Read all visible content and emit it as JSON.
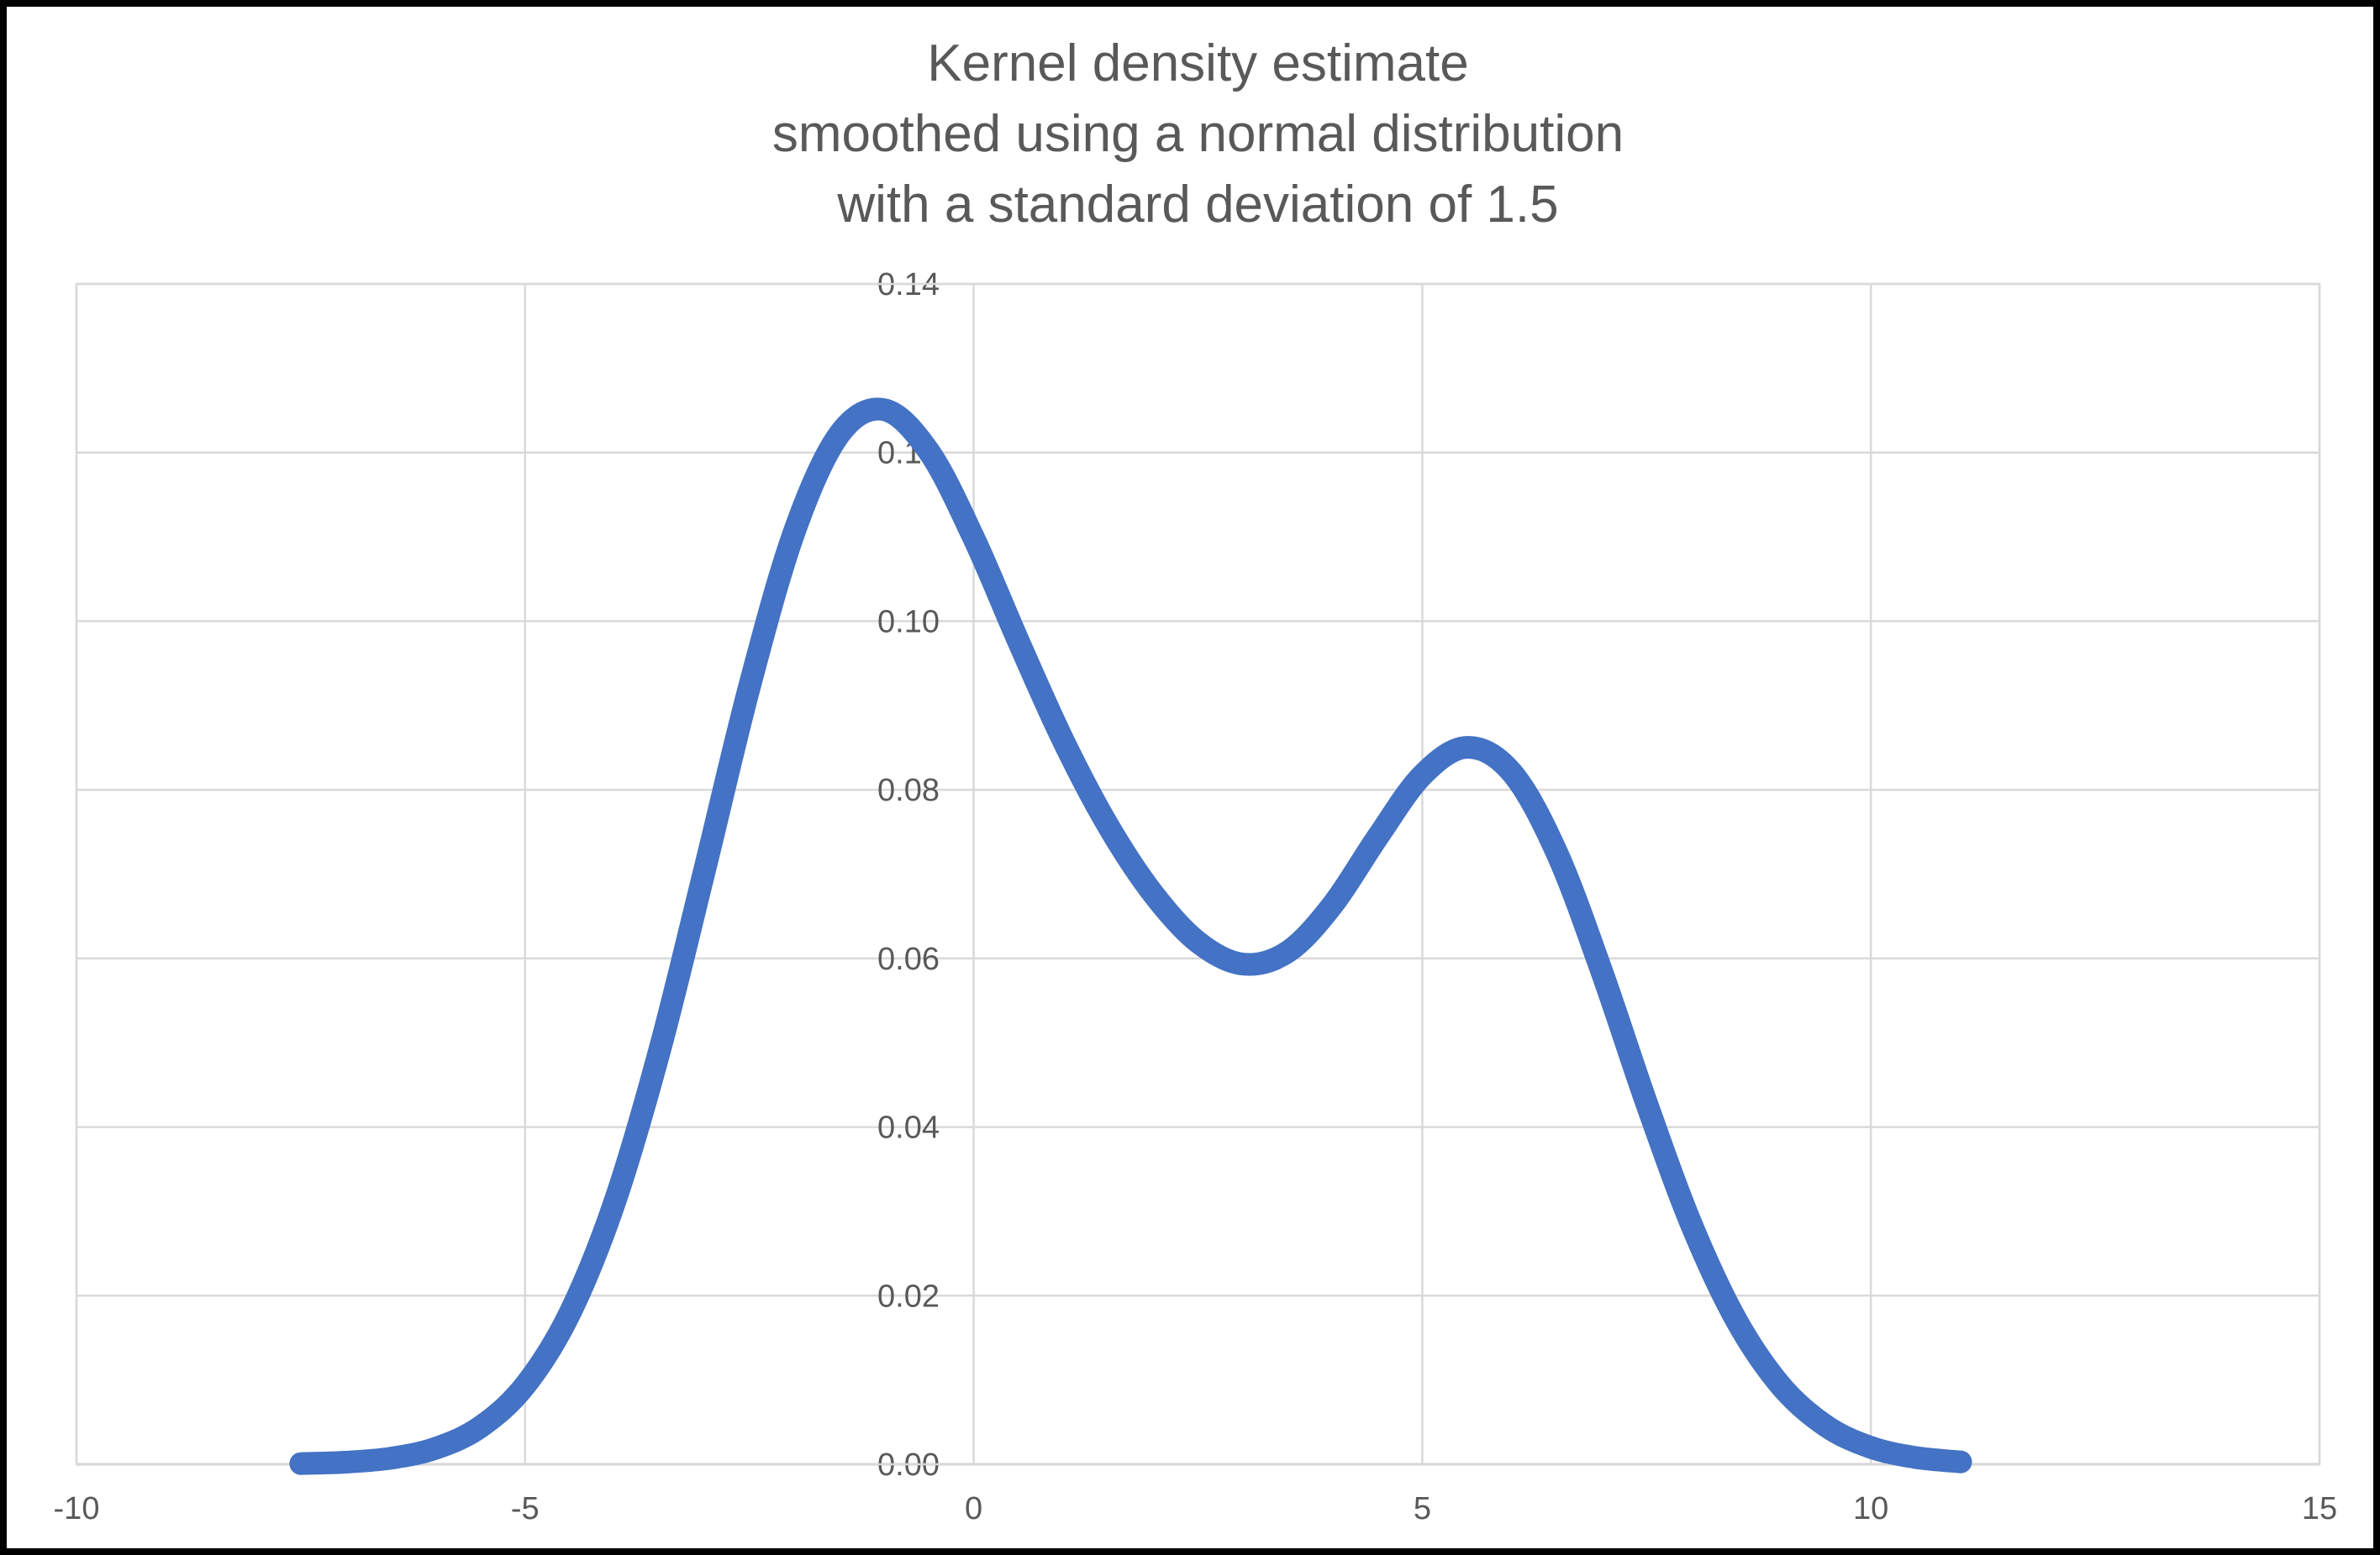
{
  "title": {
    "lines": [
      "Kernel density estimate",
      "smoothed using a normal distribution",
      "with a standard deviation of 1.5"
    ]
  },
  "colors": {
    "curve": "#4472C4",
    "gridline": "#D9D9D9",
    "axis_line": "#BFBFBF",
    "text": "#595959",
    "frame": "#000000",
    "background": "#FFFFFF"
  },
  "chart_data": {
    "type": "line",
    "title": "Kernel density estimate smoothed using a normal distribution with a standard deviation of 1.5",
    "xlabel": "",
    "ylabel": "",
    "xlim": [
      -10,
      15
    ],
    "ylim": [
      0,
      0.14
    ],
    "grid": true,
    "legend": false,
    "markers": false,
    "x_ticks": [
      -10,
      -5,
      0,
      5,
      10,
      15
    ],
    "x_tick_labels": [
      "-10",
      "-5",
      "0",
      "5",
      "10",
      "15"
    ],
    "y_ticks": [
      0,
      0.02,
      0.04,
      0.06,
      0.08,
      0.1,
      0.12,
      0.14
    ],
    "y_tick_labels": [
      "0.00",
      "0.02",
      "0.04",
      "0.06",
      "0.08",
      "0.10",
      "0.12",
      "0.14"
    ],
    "smoothing_stated_in_title": {
      "kernel": "normal",
      "standard_deviation": 1.5
    },
    "series": [
      {
        "name": "Kernel density estimate",
        "x": [
          -7.5,
          -7.0,
          -6.5,
          -6.0,
          -5.5,
          -5.0,
          -4.5,
          -4.0,
          -3.5,
          -3.0,
          -2.5,
          -2.0,
          -1.5,
          -1.0,
          -0.5,
          0.0,
          0.5,
          1.0,
          1.5,
          2.0,
          2.5,
          3.0,
          3.5,
          4.0,
          4.5,
          5.0,
          5.5,
          6.0,
          6.5,
          7.0,
          7.5,
          8.0,
          8.5,
          9.0,
          9.5,
          10.0,
          10.5,
          11.0
        ],
        "y": [
          8e-05,
          0.00025,
          0.00072,
          0.00188,
          0.00441,
          0.00935,
          0.01795,
          0.03115,
          0.0491,
          0.07043,
          0.0922,
          0.11059,
          0.12213,
          0.12509,
          0.12014,
          0.10988,
          0.09758,
          0.08579,
          0.07572,
          0.06767,
          0.06193,
          0.05933,
          0.06078,
          0.06633,
          0.07435,
          0.08173,
          0.08504,
          0.08202,
          0.07253,
          0.05846,
          0.04282,
          0.02843,
          0.01708,
          0.00927,
          0.00454,
          0.002,
          0.0008,
          0.00028
        ],
        "features": {
          "main_peak": {
            "x": -1.0,
            "y": 0.125
          },
          "valley": {
            "x": 3.0,
            "y": 0.059
          },
          "secondary_peak": {
            "x": 5.5,
            "y": 0.085
          }
        }
      }
    ]
  }
}
